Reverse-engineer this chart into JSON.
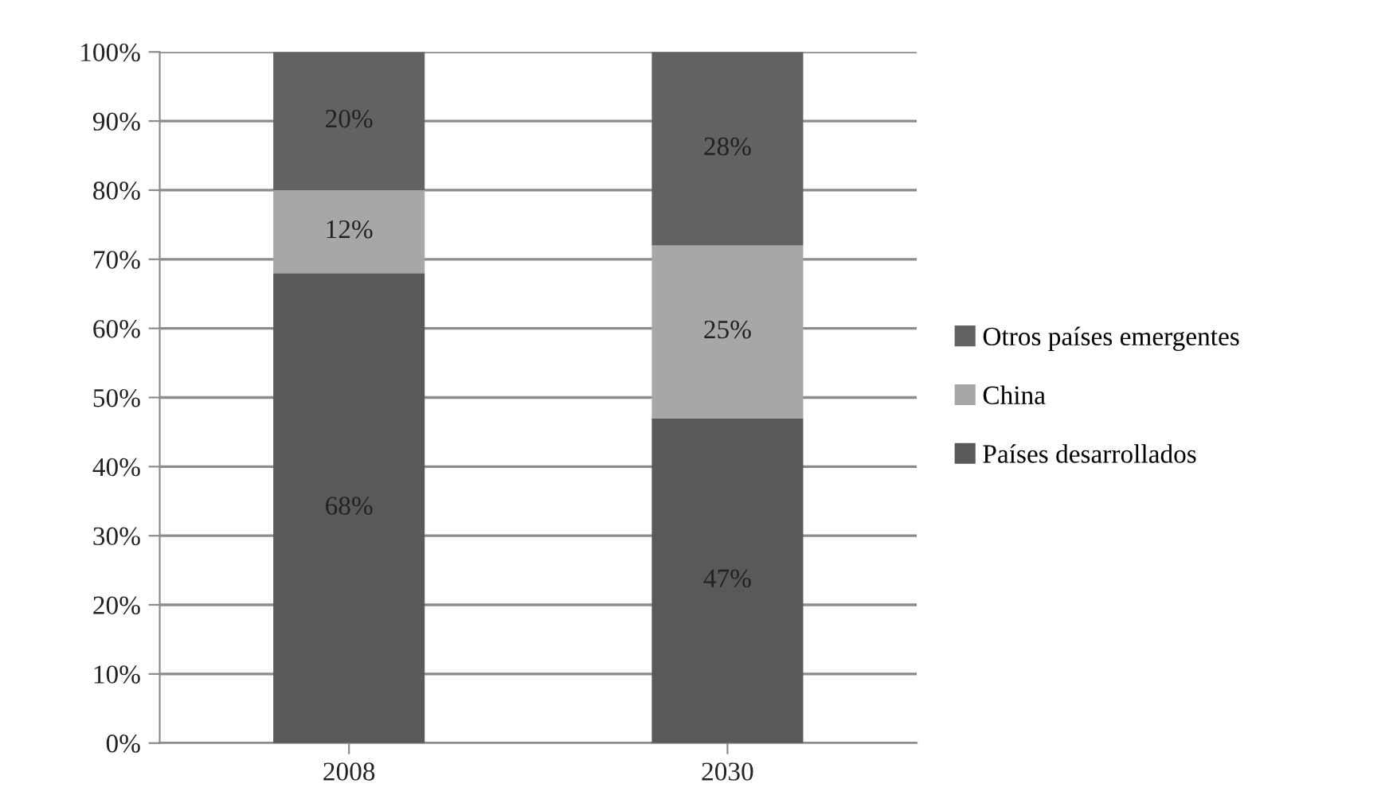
{
  "chart_data": {
    "type": "bar",
    "stacked": true,
    "categories": [
      "2008",
      "2030"
    ],
    "series": [
      {
        "name": "Países desarrollados",
        "color": "#59595b",
        "values": [
          68,
          47
        ],
        "value_labels": [
          "68%",
          "47%"
        ]
      },
      {
        "name": "China",
        "color": "#a7a7a9",
        "values": [
          12,
          25
        ],
        "value_labels": [
          "12%",
          "25%"
        ]
      },
      {
        "name": "Otros países emergentes",
        "color": "#626264",
        "values": [
          20,
          28
        ],
        "value_labels": [
          "20%",
          "28%"
        ]
      }
    ],
    "ylim": [
      0,
      100
    ],
    "yticks": [
      {
        "value": 0,
        "label": "0%"
      },
      {
        "value": 10,
        "label": "10%"
      },
      {
        "value": 20,
        "label": "20%"
      },
      {
        "value": 30,
        "label": "30%"
      },
      {
        "value": 40,
        "label": "40%"
      },
      {
        "value": 50,
        "label": "50%"
      },
      {
        "value": 60,
        "label": "60%"
      },
      {
        "value": 70,
        "label": "70%"
      },
      {
        "value": 80,
        "label": "80%"
      },
      {
        "value": 90,
        "label": "90%"
      },
      {
        "value": 100,
        "label": "100%"
      }
    ],
    "grid": "y",
    "legend": "right"
  }
}
